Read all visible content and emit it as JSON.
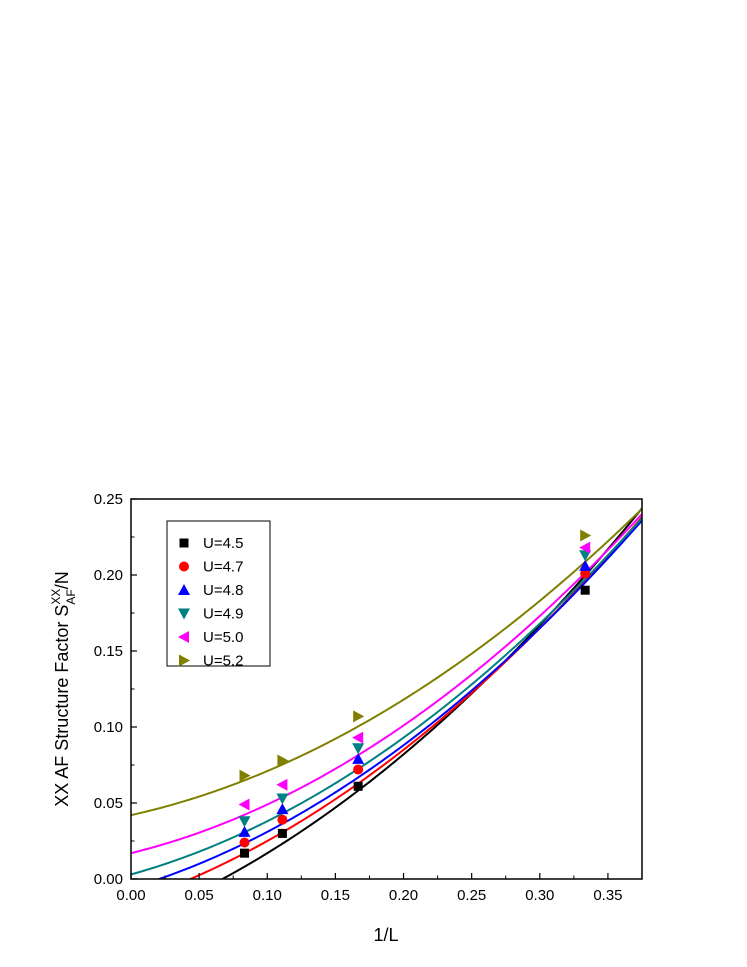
{
  "chart_data": {
    "type": "scatter",
    "xlabel": "1/L",
    "ylabel": {
      "prefix": "XX AF Structure Factor S",
      "superscript": "XX",
      "subscript": "AF",
      "suffix": "/N"
    },
    "xlim": [
      0.0,
      0.375
    ],
    "ylim": [
      0.0,
      0.25
    ],
    "x_ticks": [
      "0.00",
      "0.05",
      "0.10",
      "0.15",
      "0.20",
      "0.25",
      "0.30",
      "0.35"
    ],
    "y_ticks": [
      "0.00",
      "0.05",
      "0.10",
      "0.15",
      "0.20",
      "0.25"
    ],
    "grid": false,
    "legend_position": "top-left",
    "x": [
      0.0833,
      0.1111,
      0.1667,
      0.3333
    ],
    "series": [
      {
        "name": "U=4.5",
        "marker": "square",
        "color": "#000000",
        "values": [
          0.017,
          0.03,
          0.061,
          0.19
        ],
        "fit": [
          -0.028,
          0.35,
          1.0
        ]
      },
      {
        "name": "U=4.7",
        "marker": "circle",
        "color": "#ff0000",
        "values": [
          0.024,
          0.039,
          0.072,
          0.201
        ],
        "fit": [
          -0.015,
          0.3,
          1.0
        ]
      },
      {
        "name": "U=4.8",
        "marker": "triangle-up",
        "color": "#0000ff",
        "values": [
          0.031,
          0.046,
          0.079,
          0.206
        ],
        "fit": [
          -0.006,
          0.27,
          1.0
        ]
      },
      {
        "name": "U=4.9",
        "marker": "triangle-down",
        "color": "#008080",
        "values": [
          0.038,
          0.053,
          0.086,
          0.213
        ],
        "fit": [
          0.003,
          0.25,
          1.0
        ]
      },
      {
        "name": "U=5.0",
        "marker": "triangle-left",
        "color": "#ff00ff",
        "values": [
          0.049,
          0.062,
          0.093,
          0.218
        ],
        "fit": [
          0.017,
          0.22,
          1.0
        ]
      },
      {
        "name": "U=5.2",
        "marker": "triangle-right",
        "color": "#808000",
        "values": [
          0.068,
          0.078,
          0.107,
          0.226
        ],
        "fit": [
          0.042,
          0.2,
          0.9
        ]
      }
    ]
  }
}
